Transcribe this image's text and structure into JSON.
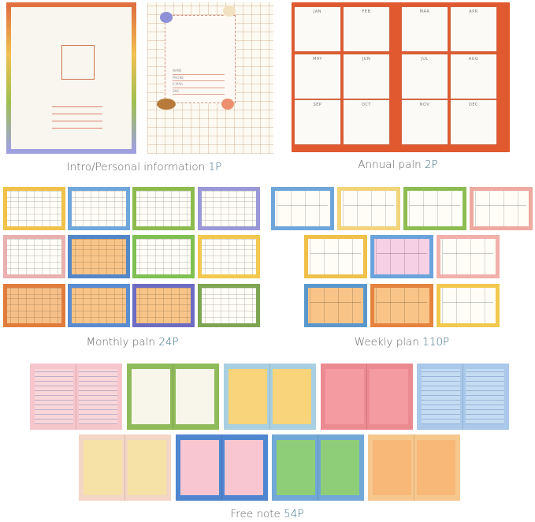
{
  "sections": {
    "intro": {
      "label": "Intro/Personal information",
      "count": "1P",
      "form_fields": [
        "NAME",
        "PHONE",
        "E-MAIL",
        "SNS"
      ]
    },
    "annual": {
      "label": "Annual paln",
      "count": "2P",
      "months": [
        "JAN",
        "FEB",
        "MAR",
        "APR",
        "MAY",
        "JUN",
        "JUL",
        "AUG",
        "SEP",
        "OCT",
        "NOV",
        "DEC"
      ],
      "accent": "#e0592f"
    },
    "monthly": {
      "label": "Monthly paln",
      "count": "24P",
      "pages": [
        {
          "border": "#f0c24a",
          "fill": "#fffdf6"
        },
        {
          "border": "#6fa6dc",
          "fill": "#fffdf6"
        },
        {
          "border": "#8dbb4e",
          "fill": "#fffdf6"
        },
        {
          "border": "#9a98d6",
          "fill": "#fffdf6"
        },
        {
          "border": "#e8b0ae",
          "fill": "#fffdf6"
        },
        {
          "border": "#5287c8",
          "fill": "#f8c488"
        },
        {
          "border": "#7fc052",
          "fill": "#fffdf6"
        },
        {
          "border": "#f2c84e",
          "fill": "#fffdf6"
        },
        {
          "border": "#e07c3c",
          "fill": "#f6c088"
        },
        {
          "border": "#5a8cd2",
          "fill": "#f8c488"
        },
        {
          "border": "#6d6cc2",
          "fill": "#f8c488"
        },
        {
          "border": "#7da552",
          "fill": "#fffdf6"
        }
      ]
    },
    "weekly": {
      "label": "Weekly plan",
      "count": "110P",
      "pages": [
        {
          "border": "#6ea6dc",
          "fill": "#fffdf6"
        },
        {
          "border": "#f2d47a",
          "fill": "#fffdf6"
        },
        {
          "border": "#8dbd52",
          "fill": "#fffdf6"
        },
        {
          "border": "#eeaaa0",
          "fill": "#fffdf6"
        },
        {
          "border": "#f0c14a",
          "fill": "#fffdf6"
        },
        {
          "border": "#6aa4dc",
          "fill": "#f6d0e4"
        },
        {
          "border": "#f2b0aa",
          "fill": "#fffdf6"
        },
        {
          "border": "#5a98cc",
          "fill": "#f8c488"
        },
        {
          "border": "#e4843e",
          "fill": "#f8c488"
        },
        {
          "border": "#f2c84e",
          "fill": "#fffdf6"
        }
      ]
    },
    "free": {
      "label": "Free note",
      "count": "54P",
      "pages": [
        {
          "bg": "#f6c6cc",
          "inner": "#f9d6da"
        },
        {
          "bg": "#8fbb5a",
          "inner": "#f8f5ea"
        },
        {
          "bg": "#a9d0e0",
          "inner": "#f9d47a"
        },
        {
          "bg": "#ec8a92",
          "inner": "#f39ba0"
        },
        {
          "bg": "#a9c8ea",
          "inner": "#c4dcf2"
        },
        {
          "bg": "#f3d6c6",
          "inner": "#f6e2a6"
        },
        {
          "bg": "#4f86d0",
          "inner": "#f8c6d0"
        },
        {
          "bg": "#72a8d8",
          "inner": "#8fce78"
        },
        {
          "bg": "#f6c88e",
          "inner": "#f8b878"
        }
      ]
    }
  }
}
